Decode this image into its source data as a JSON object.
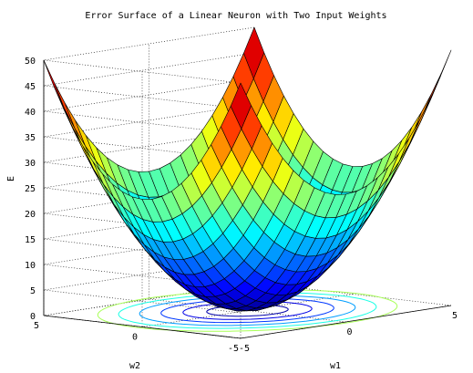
{
  "chart_data": {
    "type": "surface",
    "title": "Error Surface of a Linear Neuron with Two Input Weights",
    "xlabel": "w1",
    "ylabel": "w2",
    "zlabel": "E",
    "xlim": [
      -5,
      5
    ],
    "ylim": [
      -5,
      5
    ],
    "zlim": [
      0,
      50
    ],
    "x_ticks": [
      "-5",
      "0",
      "5"
    ],
    "y_ticks": [
      "-5",
      "0",
      "5"
    ],
    "z_ticks": [
      "0",
      "5",
      "10",
      "15",
      "20",
      "25",
      "30",
      "35",
      "40",
      "45",
      "50"
    ],
    "function": "E = w1^2 + w2^2",
    "grid_points": [
      -5,
      -4.5,
      -4,
      -3.5,
      -3,
      -2.5,
      -2,
      -1.5,
      -1,
      -0.5,
      0,
      0.5,
      1,
      1.5,
      2,
      2.5,
      3,
      3.5,
      4,
      4.5,
      5
    ],
    "contour_levels": [
      2,
      5,
      9,
      14,
      20,
      27
    ],
    "colormap": "jet",
    "grid": true
  }
}
